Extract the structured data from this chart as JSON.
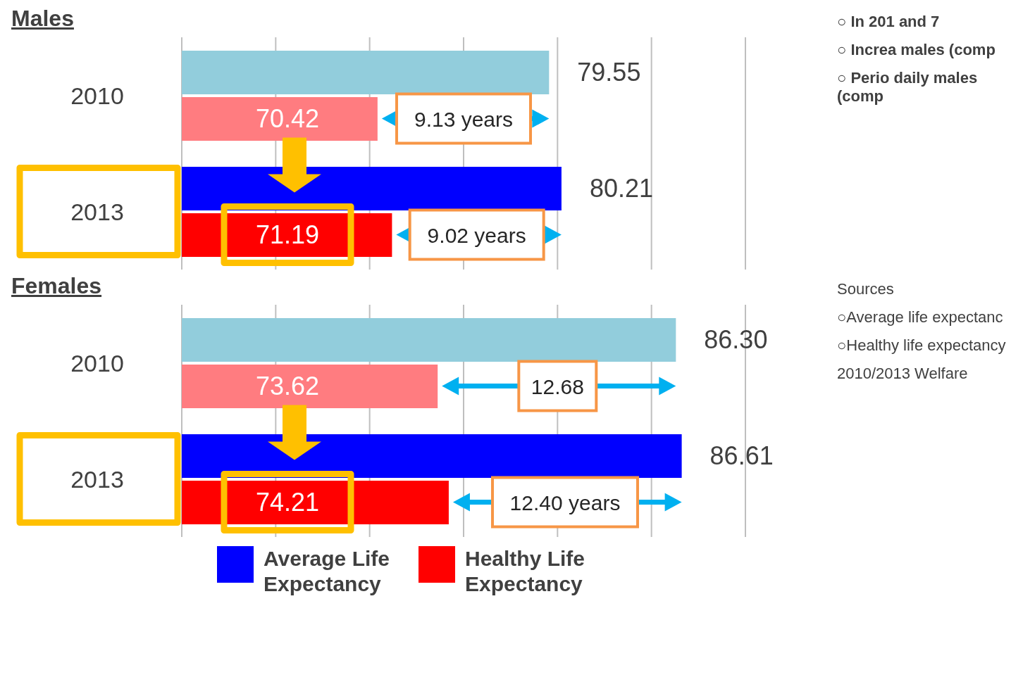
{
  "chart_data": [
    {
      "type": "bar",
      "orientation": "horizontal",
      "title": "Males",
      "categories": [
        "2010",
        "2013"
      ],
      "series": [
        {
          "color": "#0000ff",
          "colors": [
            "#92cddc",
            "#0000ff"
          ],
          "values": [
            79.55,
            80.21
          ],
          "value_labels": [
            "79.55",
            "80.21"
          ]
        },
        {
          "color": "#ff0000",
          "colors": [
            "#ff7c80",
            "#ff0000"
          ],
          "values": [
            70.42,
            71.19
          ],
          "value_labels": [
            "70.42",
            "71.19"
          ]
        }
      ],
      "xlim": [
        60,
        90
      ],
      "xticks": [
        {
          "value": 60,
          "label": null
        },
        {
          "value": 65,
          "label": null
        },
        {
          "value": 70,
          "label": null
        },
        {
          "value": 75,
          "label": null
        },
        {
          "value": 80,
          "label": null
        },
        {
          "value": 85,
          "label": null
        },
        {
          "value": 90,
          "label": null
        }
      ],
      "grid": "x",
      "tick_labels": "y",
      "legend": false,
      "annotations": [
        {
          "text": "9.13 years",
          "x": 75.0,
          "y": "2010"
        },
        {
          "text": "9.02 years",
          "x": 75.7,
          "y": "2013"
        },
        "○ In 201 and 7",
        "○ Increa males (comp",
        "○ Perio daily males (comp"
      ]
    },
    {
      "type": "bar",
      "orientation": "horizontal",
      "title": "Females",
      "categories": [
        "2010",
        "2013"
      ],
      "series": [
        {
          "name": "Average Life Expectancy",
          "color": "#0000ff",
          "colors": [
            "#92cddc",
            "#0000ff"
          ],
          "values": [
            86.3,
            86.61
          ],
          "value_labels": [
            "86.30",
            "86.61"
          ]
        },
        {
          "name": "Healthy Life Expectancy",
          "color": "#ff0000",
          "colors": [
            "#ff7c80",
            "#ff0000"
          ],
          "values": [
            73.62,
            74.21
          ],
          "value_labels": [
            "73.62",
            "74.21"
          ]
        }
      ],
      "xlim": [
        60,
        90
      ],
      "xticks": [
        {
          "value": 60,
          "label": null
        },
        {
          "value": 65,
          "label": null
        },
        {
          "value": 70,
          "label": null
        },
        {
          "value": 75,
          "label": null
        },
        {
          "value": 80,
          "label": null
        },
        {
          "value": 85,
          "label": null
        },
        {
          "value": 90,
          "label": null
        }
      ],
      "grid": "x",
      "tick_labels": "y",
      "legend": "bottom",
      "annotations": [
        {
          "text": "12.68",
          "x": 80.0,
          "y": "2010"
        },
        {
          "text": "12.40 years",
          "x": 80.4,
          "y": "2013"
        },
        "Sources",
        "○Average life expectanc",
        "○Healthy life expectancy",
        "2010/2013 Welfare"
      ]
    }
  ]
}
